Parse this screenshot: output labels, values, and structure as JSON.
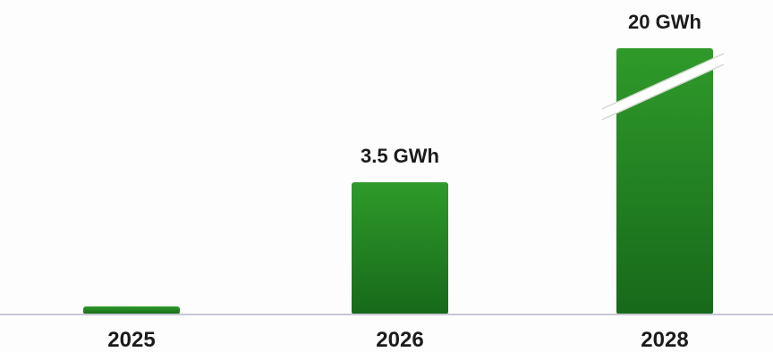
{
  "chart_data": {
    "type": "bar",
    "title": "",
    "xlabel": "",
    "ylabel": "",
    "categories": [
      "2025",
      "2026",
      "2028"
    ],
    "values": [
      null,
      3.5,
      20
    ],
    "value_labels": [
      "",
      "3.5 GWh",
      "20 GWh"
    ],
    "unit": "GWh",
    "axis_break_on": "2028",
    "grid": false,
    "legend": "none",
    "colors": {
      "bar_top": "#2f9a2a",
      "bar_bottom": "#17691a",
      "baseline": "#c7c7d6",
      "text": "#1b1b1b",
      "break_stroke": "#ffffff"
    }
  }
}
